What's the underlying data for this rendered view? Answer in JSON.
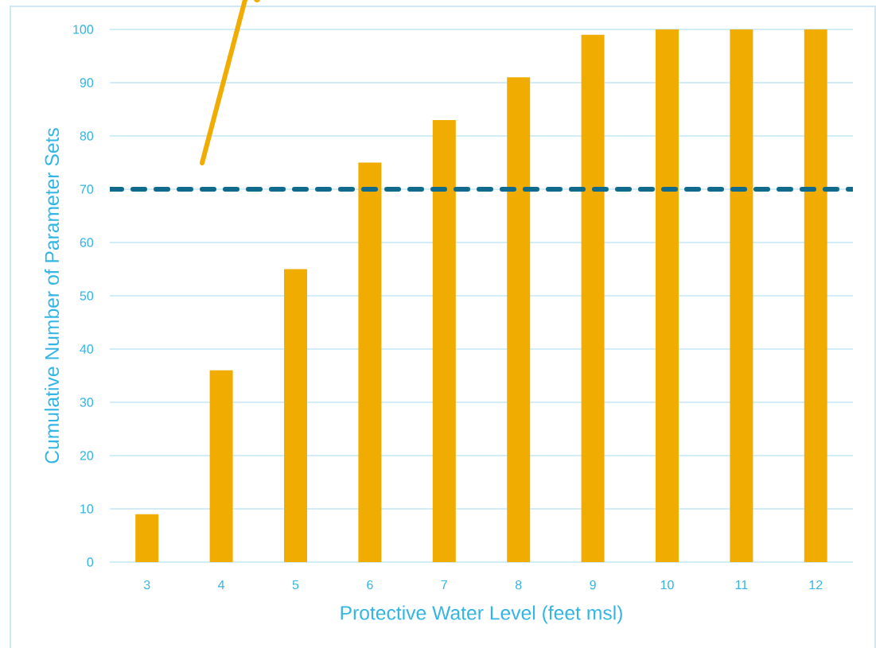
{
  "chart_data": {
    "type": "bar",
    "xlabel": "Protective Water Level (feet msl)",
    "ylabel": "Cumulative Number of Parameter Sets",
    "categories": [
      "3",
      "4",
      "5",
      "6",
      "7",
      "8",
      "9",
      "10",
      "11",
      "12"
    ],
    "values": [
      9,
      36,
      55,
      75,
      83,
      91,
      99,
      100,
      100,
      100
    ],
    "color": "#f0ac00",
    "ylim": [
      0,
      100
    ],
    "yticks": [
      0,
      10,
      20,
      30,
      40,
      50,
      60,
      70,
      80,
      90,
      100
    ],
    "grid": "y",
    "ref_lines": [
      {
        "axis": "y",
        "value": 70,
        "color": "#0f6a8b",
        "line_style": "dashed"
      }
    ]
  }
}
